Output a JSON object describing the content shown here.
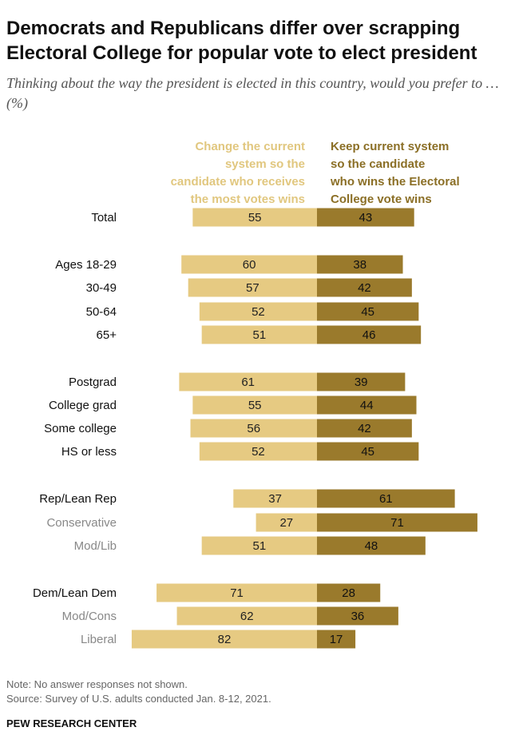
{
  "title": "Democrats and Republicans differ over scrapping Electoral College for popular vote to elect president",
  "subtitle": "Thinking about the way the president is elected in this country, would you prefer to … (%)",
  "legend": {
    "change": "Change the current\nsystem so the\ncandidate who receives\nthe most votes wins",
    "keep": "Keep current system\nso the candidate\nwho wins the Electoral\nCollege vote wins"
  },
  "colors": {
    "change": "#e6ca82",
    "keep": "#9a7a2c",
    "label_primary": "#111111",
    "label_secondary": "#888888"
  },
  "chart_data": {
    "type": "bar",
    "orientation": "diverging horizontal",
    "categories": [
      "Total",
      "Ages 18-29",
      "30-49",
      "50-64",
      "65+",
      "Postgrad",
      "College grad",
      "Some college",
      "HS or less",
      "Rep/Lean Rep",
      "Conservative",
      "Mod/Lib",
      "Dem/Lean Dem",
      "Mod/Cons",
      "Liberal"
    ],
    "category_style": [
      "primary",
      "primary",
      "primary",
      "primary",
      "primary",
      "primary",
      "primary",
      "primary",
      "primary",
      "primary",
      "secondary",
      "secondary",
      "primary",
      "secondary",
      "secondary"
    ],
    "series": [
      {
        "name": "Change the current system so the candidate who receives the most votes wins",
        "values": [
          55,
          60,
          57,
          52,
          51,
          61,
          55,
          56,
          52,
          37,
          27,
          51,
          71,
          62,
          82
        ]
      },
      {
        "name": "Keep current system so the candidate who wins the Electoral College vote wins",
        "values": [
          43,
          38,
          42,
          45,
          46,
          39,
          44,
          42,
          45,
          61,
          71,
          48,
          28,
          36,
          17
        ]
      }
    ]
  },
  "notes": {
    "note": "Note: No answer responses not shown.",
    "source": "Source: Survey of U.S. adults conducted Jan. 8-12, 2021.",
    "org": "PEW RESEARCH CENTER"
  }
}
